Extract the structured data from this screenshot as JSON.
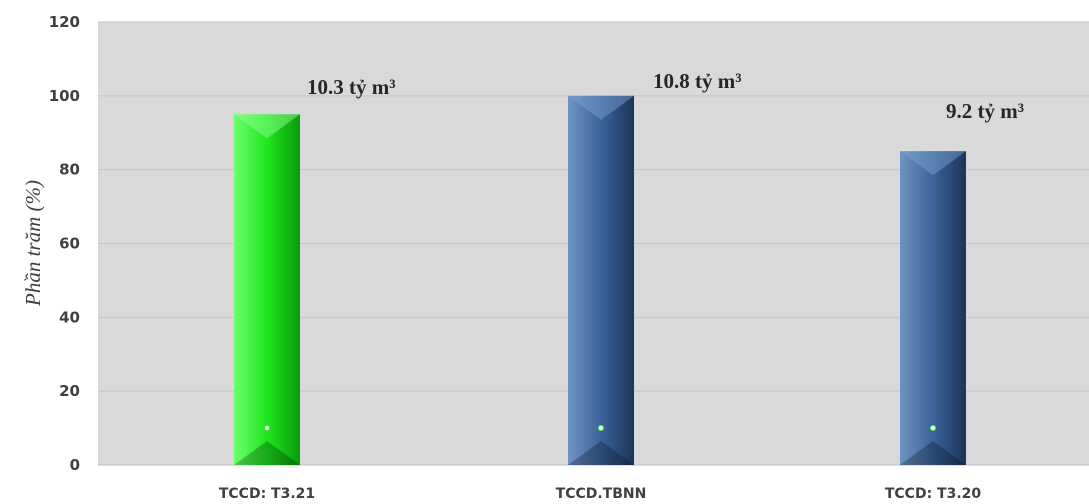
{
  "chart_data": {
    "type": "bar",
    "title": "",
    "xlabel": "",
    "ylabel": "Phần trăm (%)",
    "ylim": [
      0,
      120
    ],
    "yticks": [
      0,
      20,
      40,
      60,
      80,
      100,
      120
    ],
    "grid": true,
    "legend": "none",
    "categories": [
      "TCCD: T3.21",
      "TCCD.TBNN",
      "TCCD: T3.20"
    ],
    "values": [
      95,
      100,
      85
    ],
    "data_labels": [
      "10.3 tỷ m³",
      "10.8 tỷ m³",
      "9.2 tỷ m³"
    ],
    "bar_colors": [
      "#22ee22",
      "#355d8f",
      "#355d8f"
    ],
    "plot_background": "#d9d9d9"
  }
}
